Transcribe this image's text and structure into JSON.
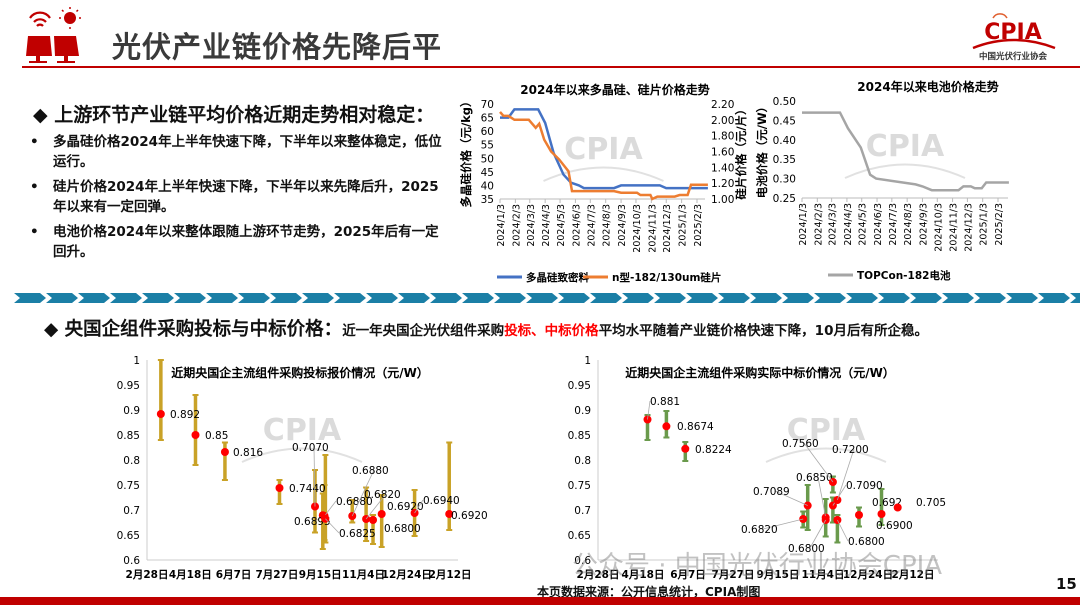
{
  "header": {
    "title": "光伏产业链价格先降后平",
    "logo_text": "CPIA",
    "logo_subtitle": "中国光伏行业协会",
    "logo_icon": "solar-panel-icon"
  },
  "section1": {
    "heading": "上游环节产业链平均价格近期走势相对稳定：",
    "bullets": [
      "多晶硅价格2024年上半年快速下降，下半年以来整体稳定，低位运行。",
      "硅片价格2024年上半年快速下降，下半年以来先降后升，2025年以来有一定回弹。",
      "电池价格2024年以来整体跟随上游环节走势，2025年后有一定回升。"
    ]
  },
  "section2": {
    "heading": "央国企组件采购投标与中标价格：",
    "sub_before": "近一年央国企光伏组件采购",
    "sub_red": "投标、中标价格",
    "sub_after": "平均水平随着产业链价格快速下降，10月后有所企稳。"
  },
  "footer": {
    "source": "本页数据来源：公开信息统计，CPIA制图",
    "page_number": "15",
    "watermark": "公众号 · 中国光伏行业协会CPIA"
  },
  "colors": {
    "accent_red": "#c00000",
    "divider_blue": "#1b7fa6",
    "polysilicon": "#4472c4",
    "wafer": "#ed7d31",
    "cell": "#a5a5a5",
    "bid_bar": "#c9a227",
    "award_bar": "#6a9a4c",
    "point": "#ff0000"
  },
  "chart_data": [
    {
      "type": "line",
      "title": "2024年以来多晶硅、硅片价格走势",
      "ylabel": "多晶硅价格（元/kg）",
      "ylabel_right": "硅片价格（元/片）",
      "ylim": [
        35,
        70
      ],
      "yticks": [
        "70",
        "65",
        "60",
        "55",
        "50",
        "45",
        "40",
        "35"
      ],
      "ylim_right": [
        1.0,
        2.2
      ],
      "yticks_right": [
        "2.20",
        "2.00",
        "1.80",
        "1.60",
        "1.40",
        "1.20",
        "1.00"
      ],
      "xticks": [
        "2024/1/3",
        "2024/2/3",
        "2024/3/3",
        "2024/4/3",
        "2024/5/3",
        "2024/6/3",
        "2024/7/3",
        "2024/8/3",
        "2024/9/3",
        "2024/10/3",
        "2024/11/3",
        "2024/12/3",
        "2025/1/3",
        "2025/2/3"
      ],
      "legend": "bottom",
      "series": [
        {
          "name": "多晶硅致密料",
          "axis": "left",
          "points": [
            [
              "2024-01-03",
              65
            ],
            [
              "2024-01-20",
              65
            ],
            [
              "2024-02-01",
              68
            ],
            [
              "2024-03-20",
              68
            ],
            [
              "2024-04-03",
              63
            ],
            [
              "2024-04-20",
              52
            ],
            [
              "2024-05-10",
              44
            ],
            [
              "2024-05-25",
              41
            ],
            [
              "2024-06-10",
              40
            ],
            [
              "2024-06-20",
              39
            ],
            [
              "2024-08-20",
              39
            ],
            [
              "2024-09-03",
              40
            ],
            [
              "2024-11-20",
              40
            ],
            [
              "2024-12-03",
              39
            ],
            [
              "2025-02-25",
              39
            ]
          ]
        },
        {
          "name": "n型-182/130um硅片",
          "axis": "right",
          "points": [
            [
              "2024-01-03",
              2.1
            ],
            [
              "2024-01-10",
              2.05
            ],
            [
              "2024-01-20",
              2.05
            ],
            [
              "2024-02-01",
              2.0
            ],
            [
              "2024-03-01",
              2.0
            ],
            [
              "2024-03-15",
              1.9
            ],
            [
              "2024-03-22",
              1.95
            ],
            [
              "2024-04-01",
              1.75
            ],
            [
              "2024-04-15",
              1.6
            ],
            [
              "2024-05-01",
              1.5
            ],
            [
              "2024-05-20",
              1.35
            ],
            [
              "2024-05-27",
              1.1
            ],
            [
              "2024-08-20",
              1.1
            ],
            [
              "2024-09-03",
              1.08
            ],
            [
              "2024-10-05",
              1.08
            ],
            [
              "2024-10-12",
              1.05
            ],
            [
              "2024-11-01",
              1.05
            ],
            [
              "2024-11-05",
              1.0
            ],
            [
              "2024-11-15",
              1.03
            ],
            [
              "2024-12-20",
              1.03
            ],
            [
              "2024-12-30",
              1.05
            ],
            [
              "2025-01-15",
              1.05
            ],
            [
              "2025-01-22",
              1.18
            ],
            [
              "2025-02-25",
              1.18
            ]
          ]
        }
      ]
    },
    {
      "type": "line",
      "title": "2024年以来电池价格走势",
      "ylabel": "电池价格（元/W）",
      "ylim": [
        0.25,
        0.5
      ],
      "yticks": [
        "0.50",
        "0.45",
        "0.40",
        "0.35",
        "0.30",
        "0.25"
      ],
      "xticks": [
        "2024/1/3",
        "2024/2/3",
        "2024/3/3",
        "2024/4/3",
        "2024/5/3",
        "2024/6/3",
        "2024/7/3",
        "2024/8/3",
        "2024/9/3",
        "2024/10/3",
        "2024/11/3",
        "2024/12/3",
        "2025/1/3",
        "2025/2/3"
      ],
      "legend": "bottom",
      "series": [
        {
          "name": "TOPCon-182电池",
          "points": [
            [
              "2024-01-03",
              0.47
            ],
            [
              "2024-03-20",
              0.47
            ],
            [
              "2024-04-05",
              0.43
            ],
            [
              "2024-05-01",
              0.38
            ],
            [
              "2024-05-20",
              0.31
            ],
            [
              "2024-06-01",
              0.3
            ],
            [
              "2024-08-20",
              0.285
            ],
            [
              "2024-09-03",
              0.28
            ],
            [
              "2024-09-22",
              0.27
            ],
            [
              "2024-11-15",
              0.27
            ],
            [
              "2024-11-25",
              0.28
            ],
            [
              "2024-12-10",
              0.28
            ],
            [
              "2024-12-18",
              0.275
            ],
            [
              "2025-01-01",
              0.275
            ],
            [
              "2025-01-10",
              0.29
            ],
            [
              "2025-02-25",
              0.29
            ]
          ]
        }
      ]
    },
    {
      "type": "scatter",
      "title": "近期央国企主流组件采购投标报价情况（元/W）",
      "ylim": [
        0.6,
        1.0
      ],
      "yticks": [
        "1",
        "0.95",
        "0.9",
        "0.85",
        "0.8",
        "0.75",
        "0.7",
        "0.65",
        "0.6"
      ],
      "xticks": [
        "2月28日",
        "4月18日",
        "6月7日",
        "7月27日",
        "9月15日",
        "11月4日",
        "12月24日",
        "2月12日"
      ],
      "grid": false,
      "points": [
        {
          "date": "2024-03-15",
          "value": 0.892,
          "low": 0.84,
          "high": 1.0,
          "label": "0.892"
        },
        {
          "date": "2024-04-24",
          "value": 0.85,
          "low": 0.79,
          "high": 0.93,
          "label": "0.85"
        },
        {
          "date": "2024-05-28",
          "value": 0.816,
          "low": 0.76,
          "high": 0.835,
          "label": "0.816"
        },
        {
          "date": "2024-07-30",
          "value": 0.744,
          "low": 0.712,
          "high": 0.76,
          "label": "0.7440"
        },
        {
          "date": "2024-09-09",
          "value": 0.707,
          "low": 0.655,
          "high": 0.78,
          "label": "0.7070"
        },
        {
          "date": "2024-09-18",
          "value": 0.6895,
          "low": 0.622,
          "high": 0.733,
          "label": "0.6895"
        },
        {
          "date": "2024-09-20",
          "value": 0.688,
          "low": 0.64,
          "high": 0.75,
          "label": "0.6880"
        },
        {
          "date": "2024-09-21",
          "value": 0.6825,
          "low": 0.635,
          "high": 0.81,
          "label": "0.6825"
        },
        {
          "date": "2024-10-22",
          "value": 0.688,
          "low": 0.675,
          "high": 0.72,
          "label": "0.6880"
        },
        {
          "date": "2024-11-07",
          "value": 0.682,
          "low": 0.638,
          "high": 0.745,
          "label": "0.6820"
        },
        {
          "date": "2024-11-15",
          "value": 0.68,
          "low": 0.632,
          "high": 0.69,
          "label": "0.6800"
        },
        {
          "date": "2024-11-25",
          "value": 0.692,
          "low": 0.626,
          "high": 0.73,
          "label": "0.6920"
        },
        {
          "date": "2025-01-02",
          "value": 0.694,
          "low": 0.648,
          "high": 0.74,
          "label": "0.6940"
        },
        {
          "date": "2025-02-11",
          "value": 0.692,
          "low": 0.66,
          "high": 0.835,
          "label": "0.6920"
        }
      ]
    },
    {
      "type": "scatter",
      "title": "近期央国企主流组件采购实际中标价情况（元/W）",
      "ylim": [
        0.6,
        1.0
      ],
      "yticks": [
        "1",
        "0.95",
        "0.9",
        "0.85",
        "0.8",
        "0.75",
        "0.7",
        "0.65",
        "0.6"
      ],
      "xticks": [
        "2月28日",
        "4月18日",
        "6月7日",
        "7月27日",
        "9月15日",
        "11月4日",
        "12月24日",
        "2月12日"
      ],
      "grid": false,
      "points": [
        {
          "date": "2024-04-23",
          "value": 0.881,
          "low": 0.84,
          "high": 0.89,
          "label": "0.881"
        },
        {
          "date": "2024-05-14",
          "value": 0.8674,
          "low": 0.845,
          "high": 0.898,
          "label": "0.8674"
        },
        {
          "date": "2024-06-04",
          "value": 0.8224,
          "low": 0.798,
          "high": 0.836,
          "label": "0.8224"
        },
        {
          "date": "2024-10-13",
          "value": 0.682,
          "low": 0.665,
          "high": 0.697,
          "label": "0.6820"
        },
        {
          "date": "2024-10-18",
          "value": 0.7089,
          "low": 0.66,
          "high": 0.75,
          "label": "0.7089"
        },
        {
          "date": "2024-11-07",
          "value": 0.685,
          "low": 0.647,
          "high": 0.722,
          "label": "0.6850"
        },
        {
          "date": "2024-11-07",
          "value": 0.68,
          "low": null,
          "high": null,
          "label": "0.6800"
        },
        {
          "date": "2024-11-15",
          "value": 0.756,
          "low": 0.735,
          "high": 0.767,
          "label": "0.7560"
        },
        {
          "date": "2024-11-15",
          "value": 0.709,
          "low": 0.675,
          "high": 0.725,
          "label": "0.7090"
        },
        {
          "date": "2024-11-20",
          "value": 0.72,
          "low": null,
          "high": null,
          "label": "0.7200"
        },
        {
          "date": "2024-11-20",
          "value": 0.68,
          "low": 0.635,
          "high": 0.69,
          "label": "0.6800"
        },
        {
          "date": "2024-12-14",
          "value": 0.69,
          "low": 0.667,
          "high": 0.705,
          "label": "0.6900"
        },
        {
          "date": "2025-01-08",
          "value": 0.692,
          "low": 0.67,
          "high": 0.742,
          "label": "0.692"
        },
        {
          "date": "2025-01-26",
          "value": 0.705,
          "low": null,
          "high": null,
          "label": "0.705"
        }
      ]
    }
  ]
}
